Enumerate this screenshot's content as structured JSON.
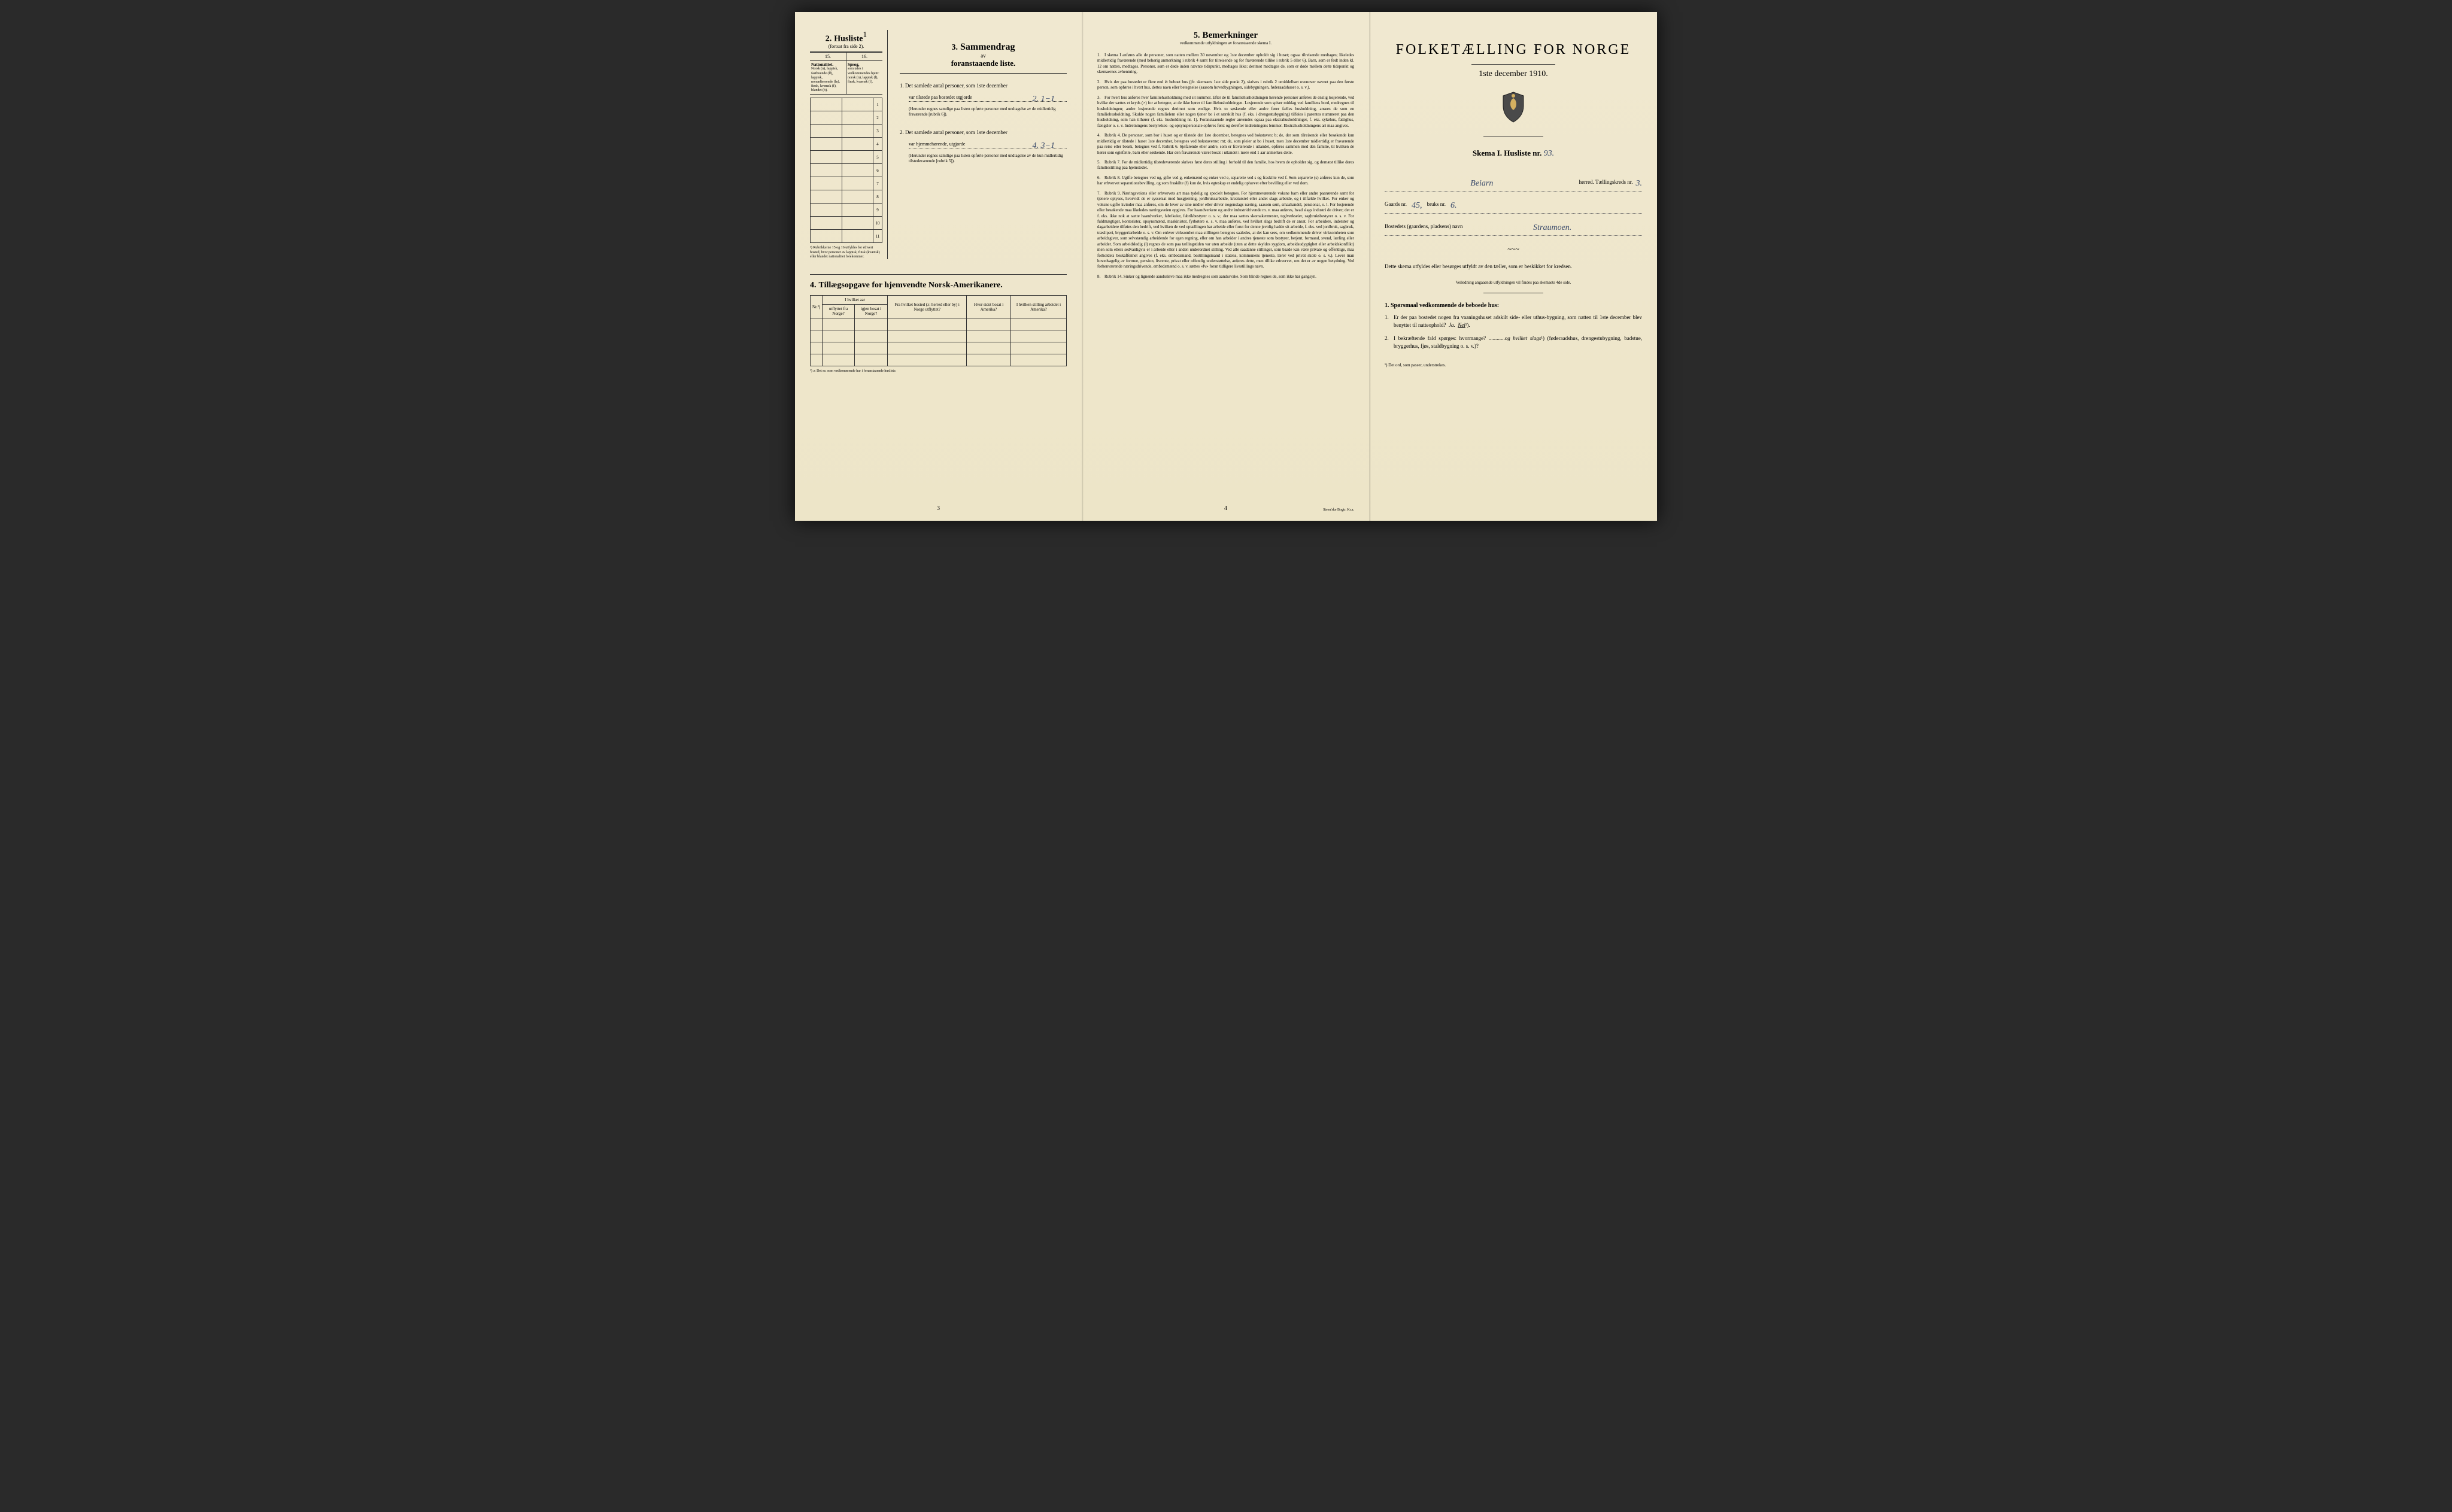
{
  "colors": {
    "paper": "#ede5c8",
    "paper_top": "#f0e8d0",
    "ink": "#1a1a1a",
    "handwriting": "#3a4a6a",
    "border": "#333333",
    "background": "#2a2a2a"
  },
  "page1": {
    "section2": {
      "title_num": "2.",
      "title": "Husliste",
      "title_sup": "1",
      "subtitle": "(fortsat fra side 2).",
      "col15": "15.",
      "col16": "16.",
      "col15_header": "Nationalitet.",
      "col15_body": "Norsk (n), lappisk, fastboende (lf), lappisk, nomadiserende (ln), finsk, kvænsk (f), blandet (b).",
      "col16_header": "Sprog,",
      "col16_body": "som tales i vedkommendes hjem: norsk (n), lappisk (l), finsk, kvænsk (f).",
      "row_label": "Personens nr.",
      "rows": [
        "1",
        "2",
        "3",
        "4",
        "5",
        "6",
        "7",
        "8",
        "9",
        "10",
        "11"
      ],
      "footnote": "¹) Rubrikkerne 15 og 16 utfyldes for ethvert bosted, hvor personer av lappisk, finsk (kvænsk) eller blandet nationalitet forekommer."
    },
    "section3": {
      "title_num": "3.",
      "title": "Sammendrag",
      "sub1": "av",
      "sub2": "foranstaaende liste.",
      "item1_num": "1.",
      "item1_text": "Det samlede antal personer, som 1ste december",
      "item1_line": "var tilstede paa bostedet utgjorde",
      "item1_hw": "2. 1−1",
      "item1_note": "(Herunder regnes samtlige paa listen opførte personer med undtagelse av de midlertidig fraværende [rubrik 6]).",
      "item2_num": "2.",
      "item2_text": "Det samlede antal personer, som 1ste december",
      "item2_line": "var hjemmehørende, utgjorde",
      "item2_hw": "4. 3−1",
      "item2_note": "(Herunder regnes samtlige paa listen opførte personer med undtagelse av de kun midlertidig tilstedeværende [rubrik 5])."
    },
    "section4": {
      "title_num": "4.",
      "title": "Tillægsopgave for hjemvendte Norsk-Amerikanere.",
      "col_nr": "Nr.²)",
      "col_group1": "I hvilket aar",
      "col_1a": "utflyttet fra Norge?",
      "col_1b": "igjen bosat i Norge?",
      "col_2": "Fra hvilket bosted (ɔ: herred eller by) i Norge utflyttet?",
      "col_3": "Hvor sidst bosat i Amerika?",
      "col_4": "I hvilken stilling arbeidet i Amerika?",
      "footnote": "²) ɔ: Det nr. som vedkommende har i foranstaaende husliste."
    },
    "page_num": "3"
  },
  "page2": {
    "title_num": "5.",
    "title": "Bemerkninger",
    "subtitle": "vedkommende utfyldningen av foranstaaende skema I.",
    "items": [
      {
        "num": "1.",
        "text": "I skema I anføres alle de personer, som natten mellem 30 november og 1ste december opholdt sig i huset; ogsaa tilreisende medtages; likeledes midlertidig fraværende (med behørig anmerkning i rubrik 4 samt for tilreisende og for fraværende tillike i rubrik 5 eller 6). Barn, som er født inden kl. 12 om natten, medtages. Personer, som er døde inden nævnte tidspunkt, medtages ikke; derimot medtages de, som er døde mellem dette tidspunkt og skemaernes avhentning."
      },
      {
        "num": "2.",
        "text": "Hvis der paa bostedet er flere end ét beboet hus (jfr. skemaets 1ste side punkt 2), skrives i rubrik 2 umiddelbart ovenover navnet paa den første person, som opføres i hvert hus, dettes navn eller betegnelse (saasom hovedbygningen, sidebygningen, føderaadshuset o. s. v.)."
      },
      {
        "num": "3.",
        "text": "For hvert hus anføres hver familiehusholdning med sit nummer. Efter de til familiehusholdningen hørende personer anføres de enslig losjerende, ved hvilke der sættes et kryds (×) for at betegne, at de ikke hører til familiehusholdningen. Losjerende som spiser middag ved familiens bord, medregnes til husholdningen; andre losjerende regnes derimot som enslige. Hvis to søskende eller andre fører fælles husholdning, ansees de som en familiehusholdning. Skulde nogen familielem eller nogen tjener bo i et særskilt hus (f. eks. i drengestubygning) tilføies i parentes nummeret paa den husholdning, som han tilhører (f. eks. husholdning nr. 1). Foranstaaende regler anvendes ogsaa paa ekstrahusholdninger, f. eks. sykehus, fattighus, fængsler o. s. v. Indretningens bestyrelses- og opsynspersonale opføres først og derefter indretningens lemmer. Ekstrahusholdningens art maa angives."
      },
      {
        "num": "4.",
        "text": "Rubrik 4. De personer, som bor i huset og er tilstede der 1ste december, betegnes ved bokstaven: b; de, der som tilreisende eller besøkende kun midlertidig er tilstede i huset 1ste december, betegnes ved bokstaverne: mt; de, som pleier at bo i huset, men 1ste december midlertidig er fraværende paa reise eller besøk, betegnes ved f. Rubrik 6. Sjøfarende eller andre, som er fraværende i utlandet, opføres sammen med den familie, til hvilken de hører som egtefælle, barn eller søskende. Har den fraværende været bosat i utlandet i mere end 1 aar anmerkes dette."
      },
      {
        "num": "5.",
        "text": "Rubrik 7. For de midlertidig tilstedeværende skrives først deres stilling i forhold til den familie, hos hvem de opholder sig, og dernæst tillike deres familiestilling paa hjemstedet."
      },
      {
        "num": "6.",
        "text": "Rubrik 8. Ugifte betegnes ved ug, gifte ved g, enkemænd og enker ved e, separerte ved s og fraskilte ved f. Som separerte (s) anføres kun de, som har erhvervet separationsbevilling, og som fraskilte (f) kun de, hvis egteskap er endelig ophævet efter bevilling eller ved dom."
      },
      {
        "num": "7.",
        "text": "Rubrik 9. Næringsveiens eller erhvervets art maa tydelig og specielt betegnes. For hjemmeværende voksne barn eller andre paarørende samt for tjenere oplyses, hvorvidt de er sysselsat med husgjerning, jordbruksarbeide, kreaturstel eller andet slags arbeide, og i tilfælde hvilket. For enker og voksne ugifte kvinder maa anføres, om de lever av sine midler eller driver nogenslags næring, saasom søm, smaahandel, pensionat, o. l. For losjerende eller besøkende maa likeledes næringsveien opgives. For haandverkere og andre industridrivende m. v. maa anføres, hvad slags industri de driver; det er f. eks. ikke nok at sætte haandverker, fabrikeier, fabrikbestyrer o. s. v.; der maa sættes skomakermester, teglverkseier, sagbruksbestyrer o. s. v. For fuldmægtiger, kontorister, opsynsmænd, maskinister, fyrbøtere o. s. v. maa anføres, ved hvilket slags bedrift de er ansat. For arbeidere, inderster og dagarbeidere tilføies den bedrift, ved hvilken de ved optællingen har arbeide eller forut for denne jevnlig hadde sit arbeide, f. eks. ved jordbruk, sagbruk, træsliperi, bryggeriarbeide o. s. v. Om enhver virksomhet maa stillingen betegnes saaledes, at det kan sees, om vedkommende driver virksomheten som arbeidsgiver, som selvstændig arbeidende for egen regning, eller om han arbeider i andres tjeneste som bestyrer, betjent, formand, svend, lærling eller arbeider. Som arbeidsledig (l) regnes de som paa tællingstiden var uten arbeide (uten at dette skyldes sygdom, arbeidsudygtighet eller arbeidskonflikt) men som ellers sedvanligvis er i arbeide eller i anden underordnet stilling. Ved alle saadanne stillinger, som baade kan være private og offentlige, maa forholdets beskaffenhet angives (f. eks. embedsmand, bestillingsmand i statens, kommunens tjeneste, lærer ved privat skole o. s. v.). Lever man hovedsagelig av formue, pension, livrente, privat eller offentlig understøttelse, anføres dette, men tillike erhvervet, om det er av nogen betydning. Ved forhenværende næringsdrivende, embedsmænd o. s. v. sættes «fv» foran tidligere livsstillings navn."
      },
      {
        "num": "8.",
        "text": "Rubrik 14. Sinker og lignende aandssløve maa ikke medregnes som aandssvake. Som blinde regnes de, som ikke har gangsyn."
      }
    ],
    "page_num": "4",
    "printer": "Steen'ske Bogtr. Kr.a."
  },
  "page3": {
    "main_title": "FOLKETÆLLING FOR NORGE",
    "date": "1ste december 1910.",
    "skema_label": "Skema I.  Husliste nr.",
    "skema_hw": "93.",
    "field1_pre": "",
    "field1_hw": "Beiarn",
    "field1_post": "herred.  Tællingskreds nr.",
    "field1_hw2": "3.",
    "field2_pre": "Gaards nr.",
    "field2_hw1": "45,",
    "field2_mid": "bruks nr.",
    "field2_hw2": "6.",
    "field3_pre": "Bostedets (gaardens, pladsens) navn",
    "field3_hw": "Straumoen.",
    "instruction1": "Dette skema utfyldes eller besørges utfyldt av den tæller, som er beskikket for kredsen.",
    "instruction2": "Veiledning angaaende utfyldningen vil findes paa skemaets 4de side.",
    "q_header": "1. Spørsmaal vedkommende de beboede hus:",
    "q1_num": "1.",
    "q1_text": "Er der paa bostedet nogen fra vaaningshuset adskilt side- eller uthus-bygning, som natten til 1ste december blev benyttet til natteophold?",
    "q1_ja": "Ja.",
    "q1_nei": "Nei",
    "q1_sup": "¹).",
    "q2_num": "2.",
    "q2_text_a": "I bekræftende fald spørges: hvormange?",
    "q2_text_b": "og hvilket slags",
    "q2_sup": "¹)",
    "q2_text_c": "(føderaadshus, drengestubygning, badstue, bryggerhus, fjøs, staldbygning o. s. v.)?",
    "footnote": "¹) Det ord, som passer, understrekes.",
    "divider": "~~~"
  }
}
